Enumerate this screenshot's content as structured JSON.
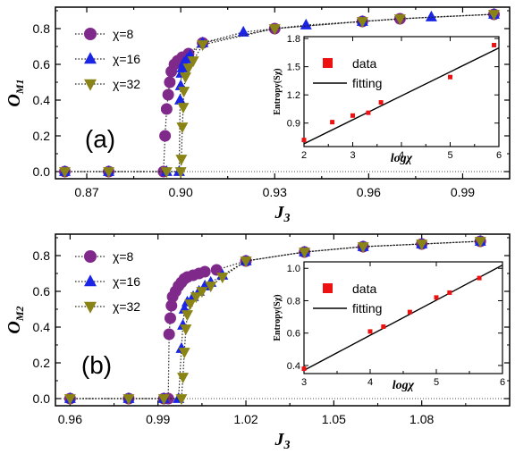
{
  "colors": {
    "chi8": "#7f2a8a",
    "chi16": "#1a25e6",
    "chi32": "#8a8416",
    "data": "#ee1111",
    "fit": "#000000"
  },
  "chart_data": [
    {
      "type": "scatter",
      "panel_label": "(a)",
      "ylabel": "O",
      "ylabel_sub": "M1",
      "xlabel": "J",
      "xlabel_sub": "3",
      "xlim": [
        0.86,
        1.005
      ],
      "ylim": [
        -0.04,
        0.92
      ],
      "xticks": [
        0.87,
        0.9,
        0.93,
        0.96,
        0.99
      ],
      "xtick_labels": [
        "0.87",
        "0.90",
        "0.93",
        "0.96",
        "0.99"
      ],
      "yticks": [
        0.0,
        0.2,
        0.4,
        0.6,
        0.8
      ],
      "ytick_labels": [
        "0.0",
        "0.2",
        "0.4",
        "0.6",
        "0.8"
      ],
      "zero_line": true,
      "legend": [
        "χ=8",
        "χ=16",
        "χ=32"
      ],
      "series": [
        {
          "name": "χ=8",
          "marker": "circle",
          "x": [
            0.863,
            0.877,
            0.8945,
            0.895,
            0.8955,
            0.896,
            0.8965,
            0.897,
            0.898,
            0.899,
            0.9005,
            0.9025,
            0.907,
            0.93,
            0.958,
            0.97,
            1.0
          ],
          "y": [
            0.0,
            0.0,
            0.0,
            0.2,
            0.35,
            0.43,
            0.5,
            0.56,
            0.6,
            0.62,
            0.64,
            0.66,
            0.72,
            0.8,
            0.84,
            0.855,
            0.88
          ]
        },
        {
          "name": "χ=16",
          "marker": "triangle-up",
          "x": [
            0.863,
            0.877,
            0.8955,
            0.8995,
            0.8998,
            0.9,
            0.9002,
            0.9005,
            0.901,
            0.902,
            0.903,
            0.907,
            0.92,
            0.94,
            0.958,
            0.98,
            1.0
          ],
          "y": [
            0.0,
            0.0,
            0.0,
            0.0,
            0.4,
            0.48,
            0.55,
            0.58,
            0.61,
            0.63,
            0.65,
            0.72,
            0.78,
            0.82,
            0.84,
            0.865,
            0.88
          ]
        },
        {
          "name": "χ=32",
          "marker": "triangle-down",
          "x": [
            0.863,
            0.877,
            0.8955,
            0.9,
            0.9002,
            0.9005,
            0.9008,
            0.901,
            0.9015,
            0.9025,
            0.904,
            0.907,
            0.93,
            0.958,
            0.97,
            1.0
          ],
          "y": [
            0.0,
            0.0,
            0.0,
            0.0,
            0.07,
            0.25,
            0.36,
            0.45,
            0.53,
            0.58,
            0.62,
            0.71,
            0.8,
            0.84,
            0.855,
            0.88
          ]
        }
      ],
      "inset": {
        "type": "scatter",
        "xlabel": "logχ",
        "ylabel": "Entropy(Sχ)",
        "xlim": [
          2,
          6
        ],
        "ylim": [
          0.65,
          1.82
        ],
        "xticks": [
          2,
          3,
          4,
          5,
          6
        ],
        "yticks": [
          0.9,
          1.2,
          1.5,
          1.8
        ],
        "ytick_labels": [
          "0.9",
          "1.2",
          "1.5",
          "1.8"
        ],
        "legend": [
          "data",
          "fitting"
        ],
        "data": {
          "name": "data",
          "x": [
            2.0,
            2.58,
            3.0,
            3.32,
            3.58,
            5.0,
            5.9
          ],
          "y": [
            0.72,
            0.91,
            0.98,
            1.01,
            1.12,
            1.39,
            1.73
          ]
        },
        "fit": {
          "name": "fitting",
          "x": [
            2.0,
            6.0
          ],
          "y": [
            0.68,
            1.7
          ]
        }
      }
    },
    {
      "type": "scatter",
      "panel_label": "(b)",
      "ylabel": "O",
      "ylabel_sub": "M2",
      "xlabel": "J",
      "xlabel_sub": "3",
      "xlim": [
        0.955,
        1.11
      ],
      "ylim": [
        -0.04,
        0.92
      ],
      "xticks": [
        0.96,
        0.99,
        1.02,
        1.05,
        1.08
      ],
      "xtick_labels": [
        "0.96",
        "0.99",
        "1.02",
        "1.05",
        "1.08"
      ],
      "yticks": [
        0.0,
        0.2,
        0.4,
        0.6,
        0.8
      ],
      "ytick_labels": [
        "0.0",
        "0.2",
        "0.4",
        "0.6",
        "0.8"
      ],
      "zero_line": true,
      "legend": [
        "χ=8",
        "χ=16",
        "χ=32"
      ],
      "series": [
        {
          "name": "χ=8",
          "marker": "circle",
          "x": [
            0.96,
            0.98,
            0.992,
            0.9935,
            0.9938,
            0.9942,
            0.9946,
            0.995,
            0.996,
            0.997,
            0.998,
            0.999,
            1.0,
            1.002,
            1.004,
            1.006,
            1.01,
            1.02,
            1.04,
            1.06,
            1.08,
            1.1
          ],
          "y": [
            0.0,
            0.0,
            0.0,
            0.0,
            0.36,
            0.45,
            0.52,
            0.57,
            0.6,
            0.63,
            0.65,
            0.67,
            0.68,
            0.69,
            0.7,
            0.71,
            0.72,
            0.77,
            0.82,
            0.85,
            0.865,
            0.88
          ]
        },
        {
          "name": "χ=16",
          "marker": "triangle-up",
          "x": [
            0.96,
            0.98,
            0.992,
            0.997,
            0.998,
            0.9985,
            0.999,
            1.0,
            1.002,
            1.004,
            1.006,
            1.008,
            1.012,
            1.02,
            1.04,
            1.06,
            1.08,
            1.1
          ],
          "y": [
            0.0,
            0.0,
            0.0,
            0.0,
            0.28,
            0.41,
            0.5,
            0.54,
            0.57,
            0.6,
            0.63,
            0.65,
            0.69,
            0.77,
            0.82,
            0.85,
            0.865,
            0.88
          ]
        },
        {
          "name": "χ=32",
          "marker": "triangle-down",
          "x": [
            0.96,
            0.98,
            0.992,
            0.998,
            0.9985,
            0.999,
            0.9995,
            1.0,
            1.001,
            1.003,
            1.005,
            1.008,
            1.012,
            1.02,
            1.04,
            1.06,
            1.08,
            1.1
          ],
          "y": [
            0.0,
            0.0,
            0.0,
            0.0,
            0.12,
            0.26,
            0.39,
            0.47,
            0.53,
            0.57,
            0.6,
            0.63,
            0.68,
            0.77,
            0.82,
            0.85,
            0.865,
            0.88
          ]
        }
      ],
      "inset": {
        "type": "scatter",
        "xlabel": "logχ",
        "ylabel": "Entropy(Sχ)",
        "xlim": [
          3,
          6
        ],
        "ylim": [
          0.35,
          1.04
        ],
        "xticks": [
          3,
          4,
          5,
          6
        ],
        "yticks": [
          0.4,
          0.6,
          0.8,
          1.0
        ],
        "ytick_labels": [
          "0.4",
          "0.6",
          "0.8",
          "1.0"
        ],
        "legend": [
          "data",
          "fitting"
        ],
        "data": {
          "name": "data",
          "x": [
            3.0,
            4.0,
            4.2,
            4.6,
            5.0,
            5.2,
            5.65
          ],
          "y": [
            0.38,
            0.61,
            0.64,
            0.73,
            0.82,
            0.85,
            0.94
          ]
        },
        "fit": {
          "name": "fitting",
          "x": [
            3.0,
            6.0
          ],
          "y": [
            0.37,
            1.02
          ]
        }
      }
    }
  ]
}
